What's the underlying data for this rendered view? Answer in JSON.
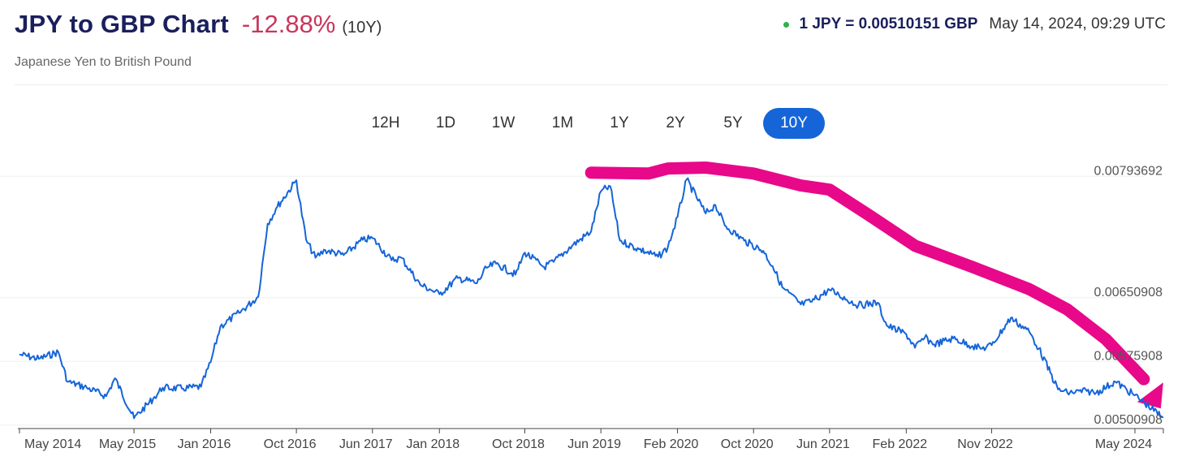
{
  "header": {
    "title": "JPY to GBP Chart",
    "change": "-12.88%",
    "period": "(10Y)",
    "subtitle": "Japanese Yen to British Pound",
    "rate": "1 JPY = 0.00510151 GBP",
    "timestamp": "May 14, 2024, 09:29 UTC"
  },
  "range_tabs": [
    {
      "label": "12H",
      "active": false
    },
    {
      "label": "1D",
      "active": false
    },
    {
      "label": "1W",
      "active": false
    },
    {
      "label": "1M",
      "active": false
    },
    {
      "label": "1Y",
      "active": false
    },
    {
      "label": "2Y",
      "active": false
    },
    {
      "label": "5Y",
      "active": false
    },
    {
      "label": "10Y",
      "active": true
    }
  ],
  "colors": {
    "line": "#1565d8",
    "accent": "#1565d8",
    "negative": "#c8365b",
    "live": "#2bb24c",
    "annotation": "#e8088a"
  },
  "chart_data": {
    "type": "line",
    "title": "",
    "xlabel": "",
    "ylabel": "",
    "y_axis_position": "right",
    "grid": "horizontal",
    "ylim": [
      0.00495,
      0.00815
    ],
    "x_ticks": [
      "May 2014",
      "May 2015",
      "Jan 2016",
      "Oct 2016",
      "Jun 2017",
      "Jan 2018",
      "Oct 2018",
      "Jun 2019",
      "Feb 2020",
      "Oct 2020",
      "Jun 2021",
      "Feb 2022",
      "Nov 2022",
      "May 2024"
    ],
    "y_ticks": [
      "0.00793692",
      "0.00650908",
      "0.00575908",
      "0.00500908"
    ],
    "series": [
      {
        "x": [
          "2014-05",
          "2014-07",
          "2014-09",
          "2014-10",
          "2014-12",
          "2015-02",
          "2015-03",
          "2015-05",
          "2015-07",
          "2015-08",
          "2015-10",
          "2015-12",
          "2016-01",
          "2016-02",
          "2016-04",
          "2016-06",
          "2016-07",
          "2016-08",
          "2016-10",
          "2016-11",
          "2016-12",
          "2017-01",
          "2017-03",
          "2017-05",
          "2017-06",
          "2017-08",
          "2017-09",
          "2017-11",
          "2017-12",
          "2018-01",
          "2018-03",
          "2018-05",
          "2018-06",
          "2018-07",
          "2018-09",
          "2018-10",
          "2018-12",
          "2019-01",
          "2019-03",
          "2019-05",
          "2019-06",
          "2019-07",
          "2019-08",
          "2019-10",
          "2019-12",
          "2020-01",
          "2020-02",
          "2020-03",
          "2020-05",
          "2020-06",
          "2020-07",
          "2020-09",
          "2020-11",
          "2020-12",
          "2021-01",
          "2021-03",
          "2021-04",
          "2021-06",
          "2021-07",
          "2021-09",
          "2021-11",
          "2021-12",
          "2022-02",
          "2022-03",
          "2022-04",
          "2022-05",
          "2022-07",
          "2022-09",
          "2022-10",
          "2022-11",
          "2023-01",
          "2023-03",
          "2023-04",
          "2023-06",
          "2023-07",
          "2023-09",
          "2023-10",
          "2023-12",
          "2024-02",
          "2024-03",
          "2024-05"
        ],
        "y": [
          0.00584,
          0.00579,
          0.00587,
          0.00552,
          0.00545,
          0.00535,
          0.00556,
          0.00509,
          0.00532,
          0.00545,
          0.00544,
          0.00546,
          0.00575,
          0.00617,
          0.00633,
          0.00652,
          0.00738,
          0.00758,
          0.00789,
          0.00719,
          0.00698,
          0.00707,
          0.00701,
          0.00719,
          0.00721,
          0.00695,
          0.00698,
          0.00666,
          0.00661,
          0.00655,
          0.00674,
          0.00668,
          0.00686,
          0.00691,
          0.00678,
          0.00704,
          0.00687,
          0.00693,
          0.00712,
          0.00729,
          0.00776,
          0.00782,
          0.00718,
          0.00708,
          0.00699,
          0.0071,
          0.00746,
          0.0079,
          0.0075,
          0.0076,
          0.00736,
          0.00718,
          0.00706,
          0.00688,
          0.00663,
          0.00643,
          0.00646,
          0.0066,
          0.00654,
          0.00642,
          0.00645,
          0.00618,
          0.00608,
          0.00592,
          0.00604,
          0.00596,
          0.00603,
          0.00594,
          0.00591,
          0.00595,
          0.00627,
          0.00611,
          0.00591,
          0.00543,
          0.00539,
          0.00541,
          0.00539,
          0.00552,
          0.00536,
          0.00528,
          0.0051
        ]
      }
    ],
    "annotation": {
      "type": "arrow",
      "description": "",
      "x": [
        "2019-05",
        "2019-11",
        "2020-01",
        "2020-05",
        "2020-10",
        "2021-03",
        "2021-06",
        "2021-10",
        "2022-03",
        "2022-09",
        "2023-03",
        "2023-07",
        "2023-11",
        "2024-03"
      ],
      "y": [
        0.00798,
        0.00797,
        0.00803,
        0.00804,
        0.00797,
        0.00783,
        0.00778,
        0.00749,
        0.00712,
        0.00687,
        0.00661,
        0.00637,
        0.00602,
        0.00555
      ]
    }
  }
}
